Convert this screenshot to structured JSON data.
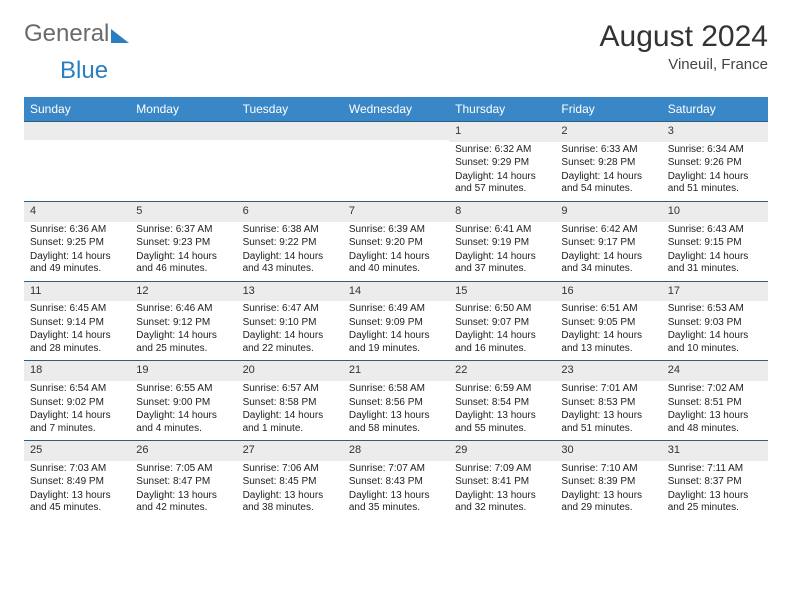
{
  "brand": {
    "part1": "General",
    "part2": "Blue"
  },
  "title": "August 2024",
  "subtitle": "Vineuil, France",
  "day_names": [
    "Sunday",
    "Monday",
    "Tuesday",
    "Wednesday",
    "Thursday",
    "Friday",
    "Saturday"
  ],
  "header_bg": "#3a87c8",
  "header_fg": "#ffffff",
  "daynum_bg": "#ececec",
  "week_border": "#2c5f84",
  "weeks": [
    [
      null,
      null,
      null,
      null,
      {
        "n": "1",
        "sunrise": "6:32 AM",
        "sunset": "9:29 PM",
        "daylight": "14 hours and 57 minutes."
      },
      {
        "n": "2",
        "sunrise": "6:33 AM",
        "sunset": "9:28 PM",
        "daylight": "14 hours and 54 minutes."
      },
      {
        "n": "3",
        "sunrise": "6:34 AM",
        "sunset": "9:26 PM",
        "daylight": "14 hours and 51 minutes."
      }
    ],
    [
      {
        "n": "4",
        "sunrise": "6:36 AM",
        "sunset": "9:25 PM",
        "daylight": "14 hours and 49 minutes."
      },
      {
        "n": "5",
        "sunrise": "6:37 AM",
        "sunset": "9:23 PM",
        "daylight": "14 hours and 46 minutes."
      },
      {
        "n": "6",
        "sunrise": "6:38 AM",
        "sunset": "9:22 PM",
        "daylight": "14 hours and 43 minutes."
      },
      {
        "n": "7",
        "sunrise": "6:39 AM",
        "sunset": "9:20 PM",
        "daylight": "14 hours and 40 minutes."
      },
      {
        "n": "8",
        "sunrise": "6:41 AM",
        "sunset": "9:19 PM",
        "daylight": "14 hours and 37 minutes."
      },
      {
        "n": "9",
        "sunrise": "6:42 AM",
        "sunset": "9:17 PM",
        "daylight": "14 hours and 34 minutes."
      },
      {
        "n": "10",
        "sunrise": "6:43 AM",
        "sunset": "9:15 PM",
        "daylight": "14 hours and 31 minutes."
      }
    ],
    [
      {
        "n": "11",
        "sunrise": "6:45 AM",
        "sunset": "9:14 PM",
        "daylight": "14 hours and 28 minutes."
      },
      {
        "n": "12",
        "sunrise": "6:46 AM",
        "sunset": "9:12 PM",
        "daylight": "14 hours and 25 minutes."
      },
      {
        "n": "13",
        "sunrise": "6:47 AM",
        "sunset": "9:10 PM",
        "daylight": "14 hours and 22 minutes."
      },
      {
        "n": "14",
        "sunrise": "6:49 AM",
        "sunset": "9:09 PM",
        "daylight": "14 hours and 19 minutes."
      },
      {
        "n": "15",
        "sunrise": "6:50 AM",
        "sunset": "9:07 PM",
        "daylight": "14 hours and 16 minutes."
      },
      {
        "n": "16",
        "sunrise": "6:51 AM",
        "sunset": "9:05 PM",
        "daylight": "14 hours and 13 minutes."
      },
      {
        "n": "17",
        "sunrise": "6:53 AM",
        "sunset": "9:03 PM",
        "daylight": "14 hours and 10 minutes."
      }
    ],
    [
      {
        "n": "18",
        "sunrise": "6:54 AM",
        "sunset": "9:02 PM",
        "daylight": "14 hours and 7 minutes."
      },
      {
        "n": "19",
        "sunrise": "6:55 AM",
        "sunset": "9:00 PM",
        "daylight": "14 hours and 4 minutes."
      },
      {
        "n": "20",
        "sunrise": "6:57 AM",
        "sunset": "8:58 PM",
        "daylight": "14 hours and 1 minute."
      },
      {
        "n": "21",
        "sunrise": "6:58 AM",
        "sunset": "8:56 PM",
        "daylight": "13 hours and 58 minutes."
      },
      {
        "n": "22",
        "sunrise": "6:59 AM",
        "sunset": "8:54 PM",
        "daylight": "13 hours and 55 minutes."
      },
      {
        "n": "23",
        "sunrise": "7:01 AM",
        "sunset": "8:53 PM",
        "daylight": "13 hours and 51 minutes."
      },
      {
        "n": "24",
        "sunrise": "7:02 AM",
        "sunset": "8:51 PM",
        "daylight": "13 hours and 48 minutes."
      }
    ],
    [
      {
        "n": "25",
        "sunrise": "7:03 AM",
        "sunset": "8:49 PM",
        "daylight": "13 hours and 45 minutes."
      },
      {
        "n": "26",
        "sunrise": "7:05 AM",
        "sunset": "8:47 PM",
        "daylight": "13 hours and 42 minutes."
      },
      {
        "n": "27",
        "sunrise": "7:06 AM",
        "sunset": "8:45 PM",
        "daylight": "13 hours and 38 minutes."
      },
      {
        "n": "28",
        "sunrise": "7:07 AM",
        "sunset": "8:43 PM",
        "daylight": "13 hours and 35 minutes."
      },
      {
        "n": "29",
        "sunrise": "7:09 AM",
        "sunset": "8:41 PM",
        "daylight": "13 hours and 32 minutes."
      },
      {
        "n": "30",
        "sunrise": "7:10 AM",
        "sunset": "8:39 PM",
        "daylight": "13 hours and 29 minutes."
      },
      {
        "n": "31",
        "sunrise": "7:11 AM",
        "sunset": "8:37 PM",
        "daylight": "13 hours and 25 minutes."
      }
    ]
  ],
  "labels": {
    "sunrise": "Sunrise:",
    "sunset": "Sunset:",
    "daylight": "Daylight:"
  }
}
